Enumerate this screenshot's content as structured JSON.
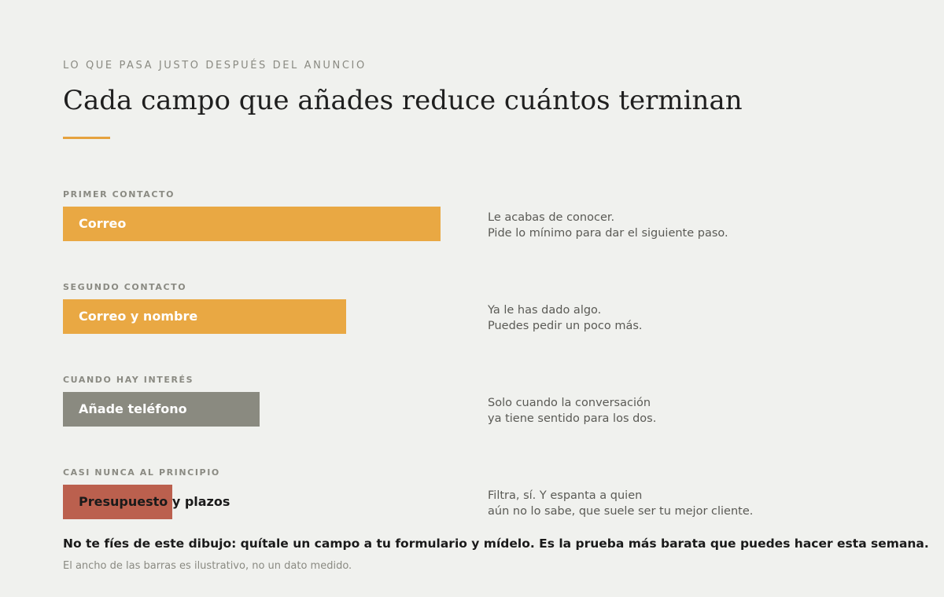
{
  "header": {
    "eyebrow": "LO QUE PASA JUSTO DESPUÉS DEL ANUNCIO",
    "title": "Cada campo que añades reduce cuántos terminan",
    "accent_color": "#e6a23e"
  },
  "rows": [
    {
      "label": "PRIMER CONTACTO",
      "bar_label": "Correo",
      "bar_value": 1.0,
      "bar_color": "#e9a843",
      "note": [
        "Le acabas de conocer.",
        "Pide lo mínimo para dar el siguiente paso."
      ]
    },
    {
      "label": "SEGUNDO CONTACTO",
      "bar_label": "Correo y nombre",
      "bar_value": 0.75,
      "bar_color": "#e9a843",
      "note": [
        "Ya le has dado algo.",
        "Puedes pedir un poco más."
      ]
    },
    {
      "label": "CUANDO HAY INTERÉS",
      "bar_label": "Añade teléfono",
      "bar_value": 0.52,
      "bar_color": "#8a8a80",
      "note": [
        "Solo cuando la conversación",
        "ya tiene sentido para los dos."
      ]
    },
    {
      "label": "CASI NUNCA AL PRINCIPIO",
      "bar_label": "Presupuesto y plazos",
      "bar_value": 0.29,
      "bar_color": "#bb604e",
      "note": [
        "Filtra, sí. Y espanta a quien",
        "aún no lo sabe, que suele ser tu mejor cliente."
      ]
    }
  ],
  "takeaway": "No te fíes de este dibujo: quítale un campo a tu formulario y mídelo. Es la prueba más barata que puedes hacer esta semana.",
  "footnote": "El ancho de las barras es ilustrativo, no un dato medido."
}
